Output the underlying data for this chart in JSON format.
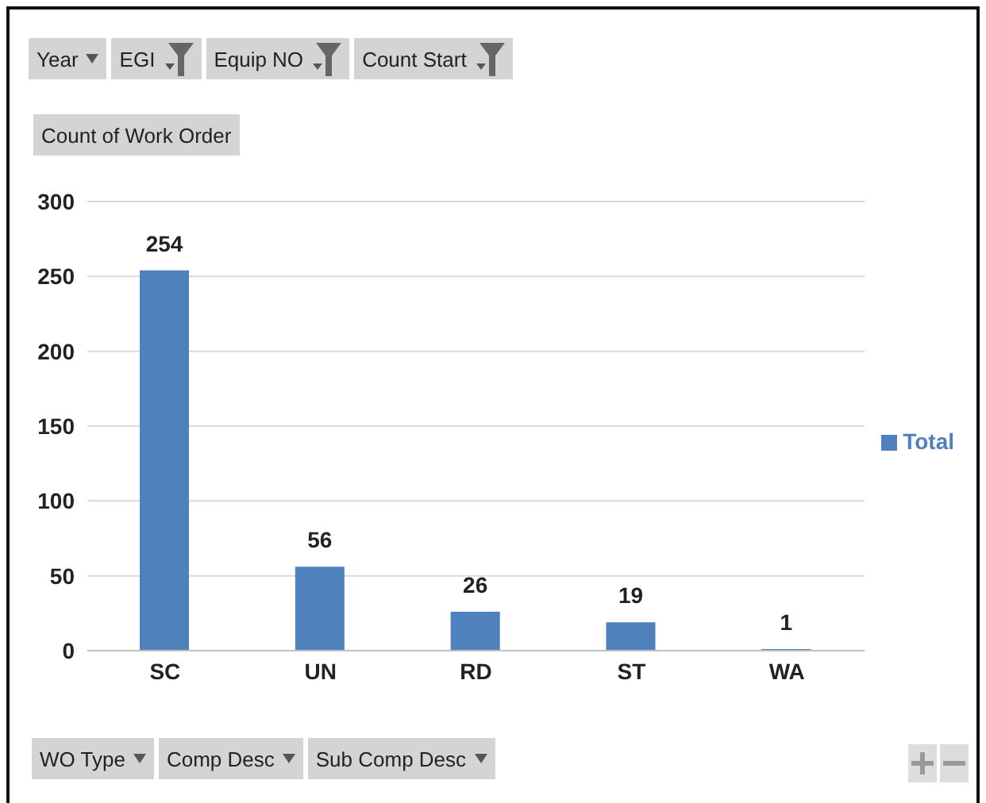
{
  "chart_data": {
    "type": "bar",
    "categories": [
      "SC",
      "UN",
      "RD",
      "ST",
      "WA"
    ],
    "series": [
      {
        "name": "Total",
        "color": "#4f81bd",
        "values": [
          254,
          56,
          26,
          19,
          1
        ]
      }
    ],
    "ylim": [
      0,
      300
    ],
    "yticks": [
      0,
      50,
      100,
      150,
      200,
      250,
      300
    ],
    "grid": "y",
    "legend": "right",
    "data_labels": true,
    "annotations": [
      "Year",
      "EGI",
      "Equip NO",
      "Count Start",
      "Count of Work Order",
      "WO Type",
      "Comp Desc",
      "Sub Comp Desc"
    ]
  }
}
